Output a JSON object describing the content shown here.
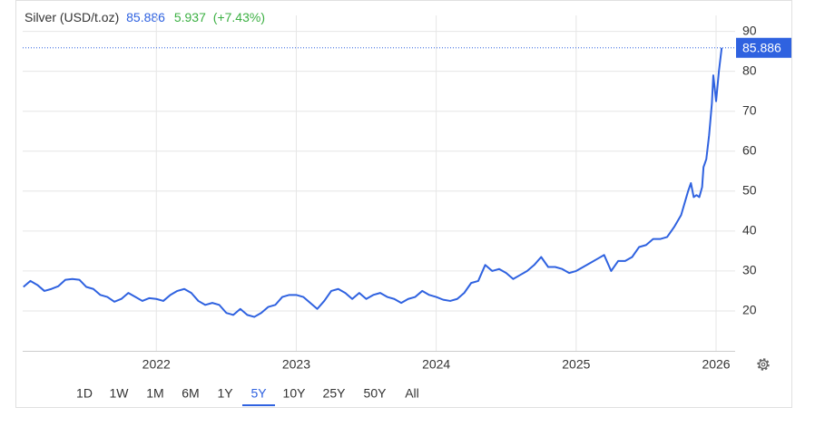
{
  "chart_data": {
    "type": "line",
    "title": "Silver (USD/t.oz)",
    "change": 5.937,
    "change_percent": {
      "value": 7.43,
      "label": "(+7.43%)"
    },
    "color": "#2f62e0",
    "x": [
      2021.05,
      2021.1,
      2021.15,
      2021.2,
      2021.25,
      2021.3,
      2021.35,
      2021.4,
      2021.45,
      2021.5,
      2021.55,
      2021.6,
      2021.65,
      2021.7,
      2021.75,
      2021.8,
      2021.85,
      2021.9,
      2021.95,
      2022.0,
      2022.05,
      2022.1,
      2022.15,
      2022.2,
      2022.25,
      2022.3,
      2022.35,
      2022.4,
      2022.45,
      2022.5,
      2022.55,
      2022.6,
      2022.65,
      2022.7,
      2022.75,
      2022.8,
      2022.85,
      2022.9,
      2022.95,
      2023.0,
      2023.05,
      2023.1,
      2023.15,
      2023.2,
      2023.25,
      2023.3,
      2023.35,
      2023.4,
      2023.45,
      2023.5,
      2023.55,
      2023.6,
      2023.65,
      2023.7,
      2023.75,
      2023.8,
      2023.85,
      2023.9,
      2023.95,
      2024.0,
      2024.05,
      2024.1,
      2024.15,
      2024.2,
      2024.25,
      2024.3,
      2024.35,
      2024.4,
      2024.45,
      2024.5,
      2024.55,
      2024.6,
      2024.65,
      2024.7,
      2024.75,
      2024.8,
      2024.85,
      2024.9,
      2024.95,
      2025.0,
      2025.05,
      2025.1,
      2025.15,
      2025.2,
      2025.25,
      2025.3,
      2025.35,
      2025.4,
      2025.45,
      2025.5,
      2025.55,
      2025.6,
      2025.65,
      2025.7,
      2025.75,
      2025.8,
      2025.82,
      2025.84,
      2025.86,
      2025.88,
      2025.9,
      2025.91,
      2025.93,
      2025.95,
      2025.97,
      2025.98,
      2026.0,
      2026.02,
      2026.04
    ],
    "values": [
      26,
      27.5,
      26.5,
      25,
      25.5,
      26.2,
      27.8,
      28,
      27.8,
      26,
      25.5,
      24,
      23.5,
      22.3,
      23,
      24.5,
      23.5,
      22.5,
      23.2,
      23,
      22.5,
      24,
      25,
      25.5,
      24.5,
      22.5,
      21.5,
      22,
      21.5,
      19.5,
      19,
      20.5,
      19,
      18.5,
      19.5,
      21,
      21.5,
      23.5,
      24,
      24,
      23.5,
      22,
      20.5,
      22.5,
      25,
      25.5,
      24.5,
      23,
      24.5,
      23,
      24,
      24.5,
      23.5,
      23,
      22,
      23,
      23.5,
      25,
      24,
      23.5,
      22.8,
      22.5,
      23,
      24.5,
      27,
      27.5,
      31.5,
      30,
      30.5,
      29.5,
      28,
      29,
      30,
      31.5,
      33.5,
      31,
      31,
      30.5,
      29.5,
      30,
      31,
      32,
      33,
      34,
      30,
      32.5,
      32.5,
      33.5,
      36,
      36.5,
      38,
      38,
      38.5,
      41,
      44,
      50,
      52,
      48.5,
      49,
      48.5,
      51,
      56,
      58,
      64,
      72,
      79,
      72.5,
      80,
      85.886
    ],
    "xlim": [
      2021.045,
      2026.136
    ],
    "xticks": [
      2022,
      2023,
      2024,
      2025,
      2026
    ],
    "ylim": [
      10,
      94
    ],
    "yticks": [
      20,
      30,
      40,
      50,
      60,
      70,
      80,
      90
    ],
    "grid": true
  },
  "range_buttons": [
    "1D",
    "1W",
    "1M",
    "6M",
    "1Y",
    "5Y",
    "10Y",
    "25Y",
    "50Y",
    "All"
  ],
  "active_range": "5Y"
}
